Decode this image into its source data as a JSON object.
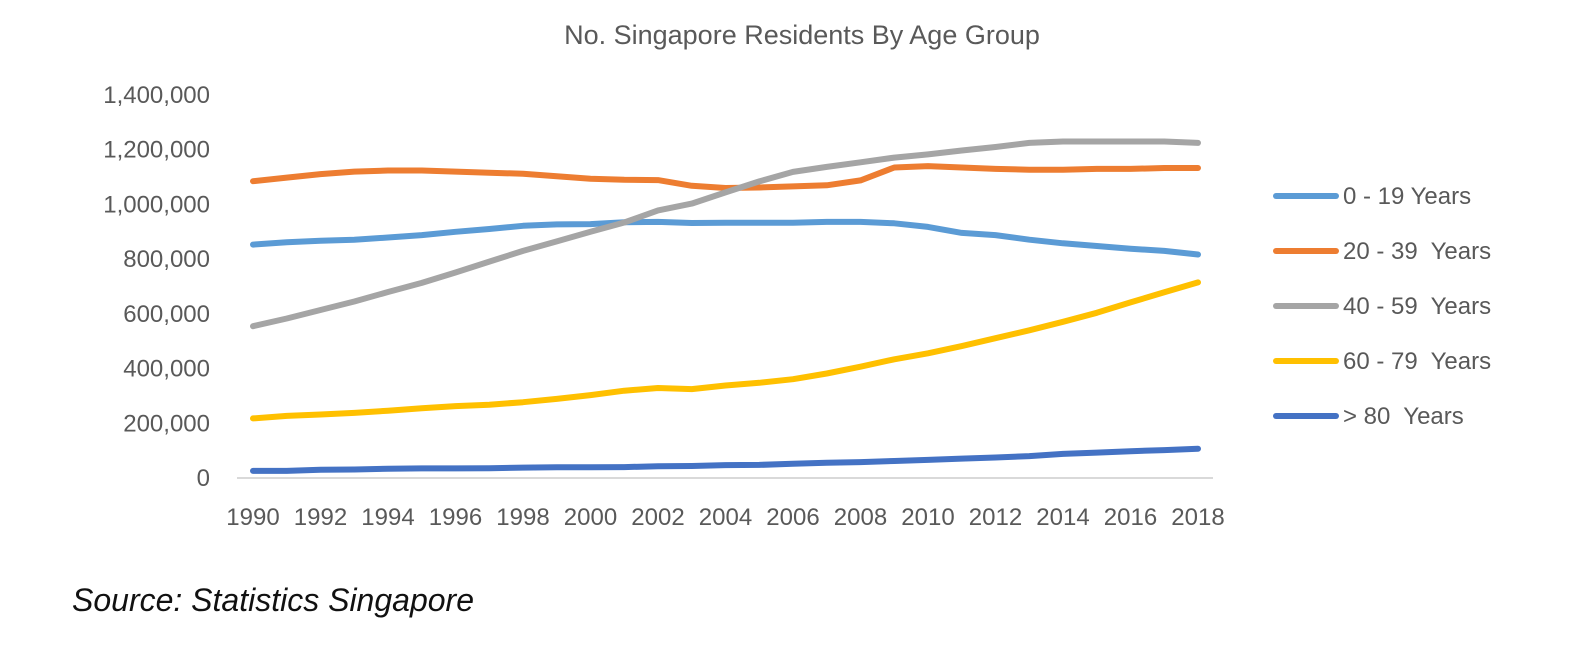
{
  "source_note": "Source: Statistics Singapore",
  "chart_data": {
    "type": "line",
    "title": "No. Singapore Residents By Age Group",
    "xlabel": "",
    "ylabel": "",
    "x": [
      1990,
      1991,
      1992,
      1993,
      1994,
      1995,
      1996,
      1997,
      1998,
      1999,
      2000,
      2001,
      2002,
      2003,
      2004,
      2005,
      2006,
      2007,
      2008,
      2009,
      2010,
      2011,
      2012,
      2013,
      2014,
      2015,
      2016,
      2017,
      2018
    ],
    "x_tick_labels": [
      "1990",
      "1992",
      "1994",
      "1996",
      "1998",
      "2000",
      "2002",
      "2004",
      "2006",
      "2008",
      "2010",
      "2012",
      "2014",
      "2016",
      "2018"
    ],
    "ylim": [
      0,
      1400000
    ],
    "y_tick_values": [
      0,
      200000,
      400000,
      600000,
      800000,
      1000000,
      1200000,
      1400000
    ],
    "y_tick_labels": [
      "0",
      "200,000",
      "400,000",
      "600,000",
      "800,000",
      "1,000,000",
      "1,200,000",
      "1,400,000"
    ],
    "grid": false,
    "legend_position": "right",
    "series": [
      {
        "name": "0 - 19 Years",
        "color": "#5B9BD5",
        "values": [
          853000,
          862000,
          867000,
          871000,
          879000,
          888000,
          900000,
          910000,
          922000,
          927000,
          928000,
          935000,
          936000,
          932000,
          933000,
          933000,
          933000,
          936000,
          936000,
          931000,
          918000,
          896000,
          888000,
          871000,
          858000,
          848000,
          838000,
          830000,
          817000
        ]
      },
      {
        "name": "20 - 39  Years",
        "color": "#ED7D31",
        "values": [
          1085000,
          1098000,
          1111000,
          1120000,
          1124000,
          1124000,
          1120000,
          1116000,
          1112000,
          1103000,
          1094000,
          1090000,
          1089000,
          1068000,
          1060000,
          1062000,
          1066000,
          1070000,
          1088000,
          1135000,
          1140000,
          1135000,
          1130000,
          1127000,
          1127000,
          1130000,
          1130000,
          1133000,
          1133000
        ]
      },
      {
        "name": "40 - 59  Years",
        "color": "#A5A5A5",
        "values": [
          555000,
          583000,
          614000,
          645000,
          680000,
          713000,
          751000,
          791000,
          830000,
          865000,
          900000,
          934000,
          978000,
          1003000,
          1044000,
          1084000,
          1119000,
          1137000,
          1154000,
          1171000,
          1183000,
          1197000,
          1210000,
          1225000,
          1230000,
          1230000,
          1230000,
          1230000,
          1225000
        ]
      },
      {
        "name": "60 - 79  Years",
        "color": "#FFC000",
        "values": [
          218000,
          227000,
          232000,
          238000,
          246000,
          255000,
          263000,
          268000,
          277000,
          289000,
          303000,
          319000,
          329000,
          325000,
          338000,
          348000,
          361000,
          382000,
          407000,
          434000,
          456000,
          482000,
          511000,
          540000,
          571000,
          604000,
          642000,
          679000,
          715000
        ]
      },
      {
        "name": "> 80  Years",
        "color": "#4472C4",
        "values": [
          26000,
          26000,
          30000,
          31000,
          34000,
          35000,
          35000,
          36000,
          38000,
          39000,
          39000,
          40000,
          43000,
          44000,
          47000,
          48000,
          52000,
          56000,
          58000,
          62000,
          66000,
          71000,
          75000,
          80000,
          88000,
          93000,
          98000,
          102000,
          107000
        ]
      }
    ]
  }
}
